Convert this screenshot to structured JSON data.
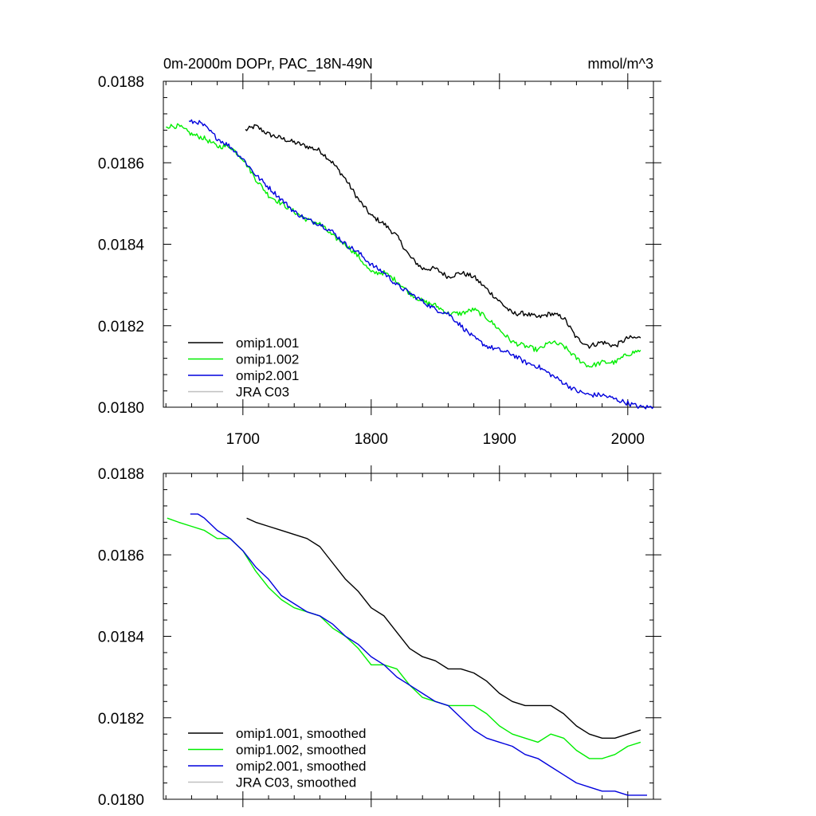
{
  "colors": {
    "omip1_001": "#000000",
    "omip1_002": "#00ee00",
    "omip2_001": "#0000dd",
    "jra_c03": "#c0c0c0"
  },
  "chart_data": [
    {
      "type": "line",
      "title": "0m-2000m DOPr, PAC_18N-49N",
      "units": "mmol/m^3",
      "xlim": [
        1638,
        2020
      ],
      "ylim": [
        0.018,
        0.0188
      ],
      "x_ticks": [
        1700,
        1800,
        1900,
        2000
      ],
      "x_tick_labels": [
        "1700",
        "1800",
        "1900",
        "2000"
      ],
      "y_ticks": [
        0.018,
        0.0182,
        0.0184,
        0.0186,
        0.0188
      ],
      "y_tick_labels": [
        "0.0180",
        "0.0182",
        "0.0184",
        "0.0186",
        "0.0188"
      ],
      "legend_position": "bottom-left",
      "legend": [
        "omip1.001",
        "omip1.002",
        "omip2.001",
        "JRA C03"
      ],
      "series": [
        {
          "name": "omip1.001",
          "key": "omip1_001",
          "x": [
            1702,
            1710,
            1720,
            1730,
            1740,
            1750,
            1760,
            1770,
            1780,
            1790,
            1800,
            1810,
            1820,
            1830,
            1840,
            1850,
            1860,
            1870,
            1880,
            1890,
            1900,
            1910,
            1920,
            1930,
            1940,
            1950,
            1960,
            1970,
            1980,
            1990,
            2000,
            2010
          ],
          "y": [
            0.01868,
            0.01869,
            0.01867,
            0.01866,
            0.01865,
            0.01864,
            0.01863,
            0.0186,
            0.01856,
            0.01851,
            0.01847,
            0.01845,
            0.01842,
            0.01837,
            0.01834,
            0.01834,
            0.01832,
            0.01833,
            0.01832,
            0.01829,
            0.01826,
            0.01823,
            0.01823,
            0.01822,
            0.01823,
            0.01822,
            0.01817,
            0.01815,
            0.01816,
            0.01815,
            0.01817,
            0.01817
          ]
        },
        {
          "name": "omip1.002",
          "key": "omip1_002",
          "x": [
            1640,
            1650,
            1660,
            1670,
            1680,
            1690,
            1700,
            1710,
            1720,
            1730,
            1740,
            1750,
            1760,
            1770,
            1780,
            1790,
            1800,
            1810,
            1820,
            1830,
            1840,
            1850,
            1860,
            1870,
            1880,
            1890,
            1900,
            1910,
            1920,
            1930,
            1940,
            1950,
            1960,
            1970,
            1980,
            1990,
            2000,
            2010
          ],
          "y": [
            0.01869,
            0.01869,
            0.01867,
            0.01866,
            0.01864,
            0.01864,
            0.01861,
            0.01856,
            0.01852,
            0.0185,
            0.01848,
            0.01846,
            0.01845,
            0.01842,
            0.0184,
            0.01837,
            0.01833,
            0.01833,
            0.01831,
            0.01828,
            0.01826,
            0.01825,
            0.01823,
            0.01823,
            0.01824,
            0.01822,
            0.01819,
            0.01816,
            0.01815,
            0.01814,
            0.01816,
            0.01815,
            0.01812,
            0.0181,
            0.01811,
            0.01811,
            0.01813,
            0.01814
          ]
        },
        {
          "name": "omip2.001",
          "key": "omip2_001",
          "x": [
            1658,
            1665,
            1670,
            1680,
            1690,
            1700,
            1710,
            1720,
            1730,
            1740,
            1750,
            1760,
            1770,
            1780,
            1790,
            1800,
            1810,
            1820,
            1830,
            1840,
            1850,
            1860,
            1870,
            1880,
            1890,
            1900,
            1910,
            1920,
            1930,
            1940,
            1950,
            1960,
            1970,
            1980,
            1990,
            2000,
            2010,
            2020
          ],
          "y": [
            0.0187,
            0.0187,
            0.01869,
            0.01866,
            0.01864,
            0.01861,
            0.01857,
            0.01854,
            0.01851,
            0.01848,
            0.01846,
            0.01845,
            0.01843,
            0.0184,
            0.01838,
            0.01835,
            0.01833,
            0.0183,
            0.01828,
            0.01826,
            0.01824,
            0.01823,
            0.0182,
            0.01817,
            0.01815,
            0.01814,
            0.01813,
            0.01811,
            0.0181,
            0.01808,
            0.01806,
            0.01804,
            0.01803,
            0.01803,
            0.01802,
            0.01801,
            0.018,
            0.018
          ]
        },
        {
          "name": "JRA C03",
          "key": "jra_c03",
          "x": [],
          "y": []
        }
      ]
    },
    {
      "type": "line",
      "title": "",
      "units": "",
      "xlim": [
        1638,
        2020
      ],
      "ylim": [
        0.018,
        0.0188
      ],
      "x_ticks": [
        1700,
        1800,
        1900,
        2000
      ],
      "x_tick_labels": [],
      "y_ticks": [
        0.018,
        0.0182,
        0.0184,
        0.0186,
        0.0188
      ],
      "y_tick_labels": [
        "0.0180",
        "0.0182",
        "0.0184",
        "0.0186",
        "0.0188"
      ],
      "legend_position": "bottom-left",
      "legend": [
        "omip1.001, smoothed",
        "omip1.002, smoothed",
        "omip2.001, smoothed",
        "JRA C03, smoothed"
      ],
      "series": [
        {
          "name": "omip1.001, smoothed",
          "key": "omip1_001",
          "x": [
            1703,
            1710,
            1720,
            1730,
            1740,
            1750,
            1760,
            1770,
            1780,
            1790,
            1800,
            1810,
            1820,
            1830,
            1840,
            1850,
            1860,
            1870,
            1880,
            1890,
            1900,
            1910,
            1920,
            1930,
            1940,
            1950,
            1960,
            1970,
            1980,
            1990,
            2000,
            2010
          ],
          "y": [
            0.01869,
            0.01868,
            0.01867,
            0.01866,
            0.01865,
            0.01864,
            0.01862,
            0.01858,
            0.01854,
            0.01851,
            0.01847,
            0.01845,
            0.01841,
            0.01837,
            0.01835,
            0.01834,
            0.01832,
            0.01832,
            0.01831,
            0.01829,
            0.01826,
            0.01824,
            0.01823,
            0.01823,
            0.01823,
            0.01821,
            0.01818,
            0.01816,
            0.01815,
            0.01815,
            0.01816,
            0.01817
          ]
        },
        {
          "name": "omip1.002, smoothed",
          "key": "omip1_002",
          "x": [
            1641,
            1650,
            1660,
            1670,
            1680,
            1690,
            1700,
            1710,
            1720,
            1730,
            1740,
            1750,
            1760,
            1770,
            1780,
            1790,
            1800,
            1810,
            1820,
            1830,
            1840,
            1850,
            1860,
            1870,
            1880,
            1890,
            1900,
            1910,
            1920,
            1930,
            1940,
            1950,
            1960,
            1970,
            1980,
            1990,
            2000,
            2010
          ],
          "y": [
            0.01869,
            0.01868,
            0.01867,
            0.01866,
            0.01864,
            0.01864,
            0.01861,
            0.01856,
            0.01852,
            0.01849,
            0.01847,
            0.01846,
            0.01845,
            0.01842,
            0.0184,
            0.01837,
            0.01833,
            0.01833,
            0.01832,
            0.01828,
            0.01825,
            0.01824,
            0.01823,
            0.01823,
            0.01823,
            0.01821,
            0.01818,
            0.01816,
            0.01815,
            0.01814,
            0.01816,
            0.01815,
            0.01812,
            0.0181,
            0.0181,
            0.01811,
            0.01813,
            0.01814
          ]
        },
        {
          "name": "omip2.001, smoothed",
          "key": "omip2_001",
          "x": [
            1659,
            1665,
            1670,
            1680,
            1690,
            1700,
            1710,
            1720,
            1730,
            1740,
            1750,
            1760,
            1770,
            1780,
            1790,
            1800,
            1810,
            1820,
            1830,
            1840,
            1850,
            1860,
            1870,
            1880,
            1890,
            1900,
            1910,
            1920,
            1930,
            1940,
            1950,
            1960,
            1970,
            1980,
            1990,
            2000,
            2010,
            2015
          ],
          "y": [
            0.0187,
            0.0187,
            0.01869,
            0.01866,
            0.01864,
            0.01861,
            0.01857,
            0.01854,
            0.0185,
            0.01848,
            0.01846,
            0.01845,
            0.01843,
            0.0184,
            0.01838,
            0.01835,
            0.01833,
            0.0183,
            0.01828,
            0.01826,
            0.01824,
            0.01823,
            0.0182,
            0.01817,
            0.01815,
            0.01814,
            0.01813,
            0.01811,
            0.0181,
            0.01808,
            0.01806,
            0.01804,
            0.01803,
            0.01802,
            0.01802,
            0.01801,
            0.01801,
            0.01801
          ]
        },
        {
          "name": "JRA C03, smoothed",
          "key": "jra_c03",
          "x": [],
          "y": []
        }
      ]
    }
  ]
}
